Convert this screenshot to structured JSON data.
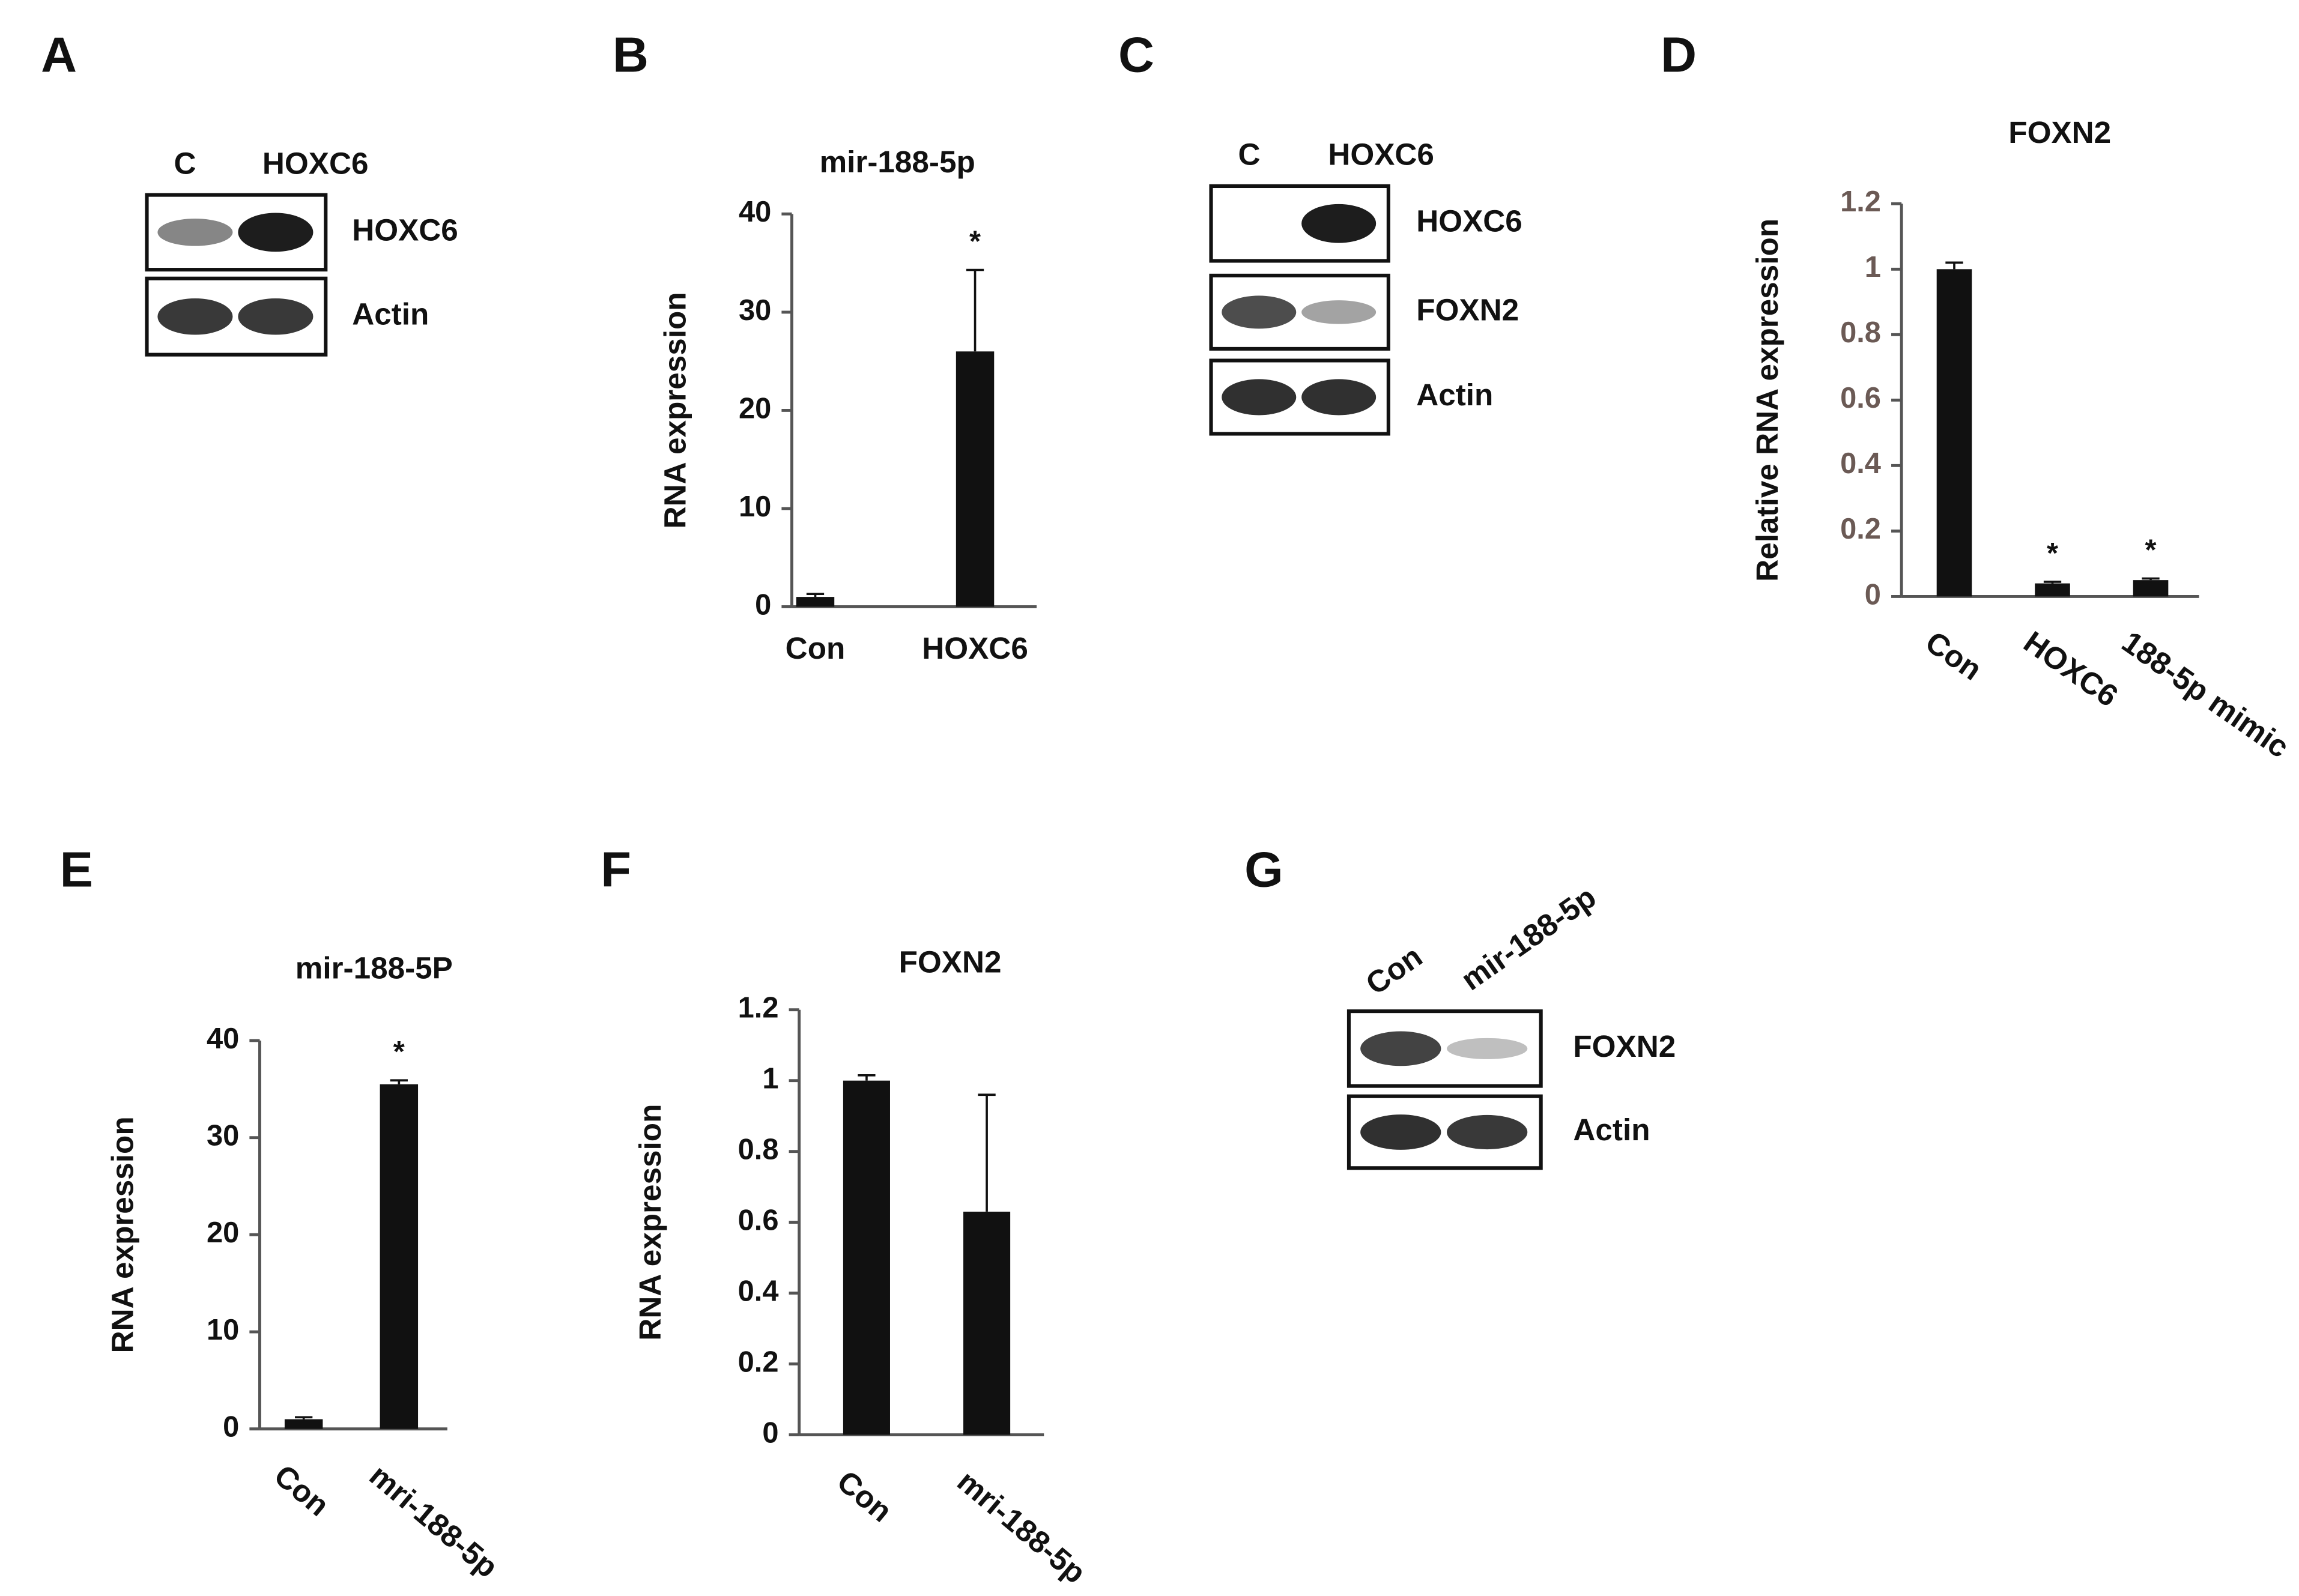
{
  "blots": [
    {
      "letter": "A",
      "lanes": [
        "C",
        "HOXC6"
      ],
      "rows": [
        "HOXC6",
        "Actin"
      ]
    },
    {
      "letter": "C",
      "lanes": [
        "C",
        "HOXC6"
      ],
      "rows": [
        "HOXC6",
        "FOXN2",
        "Actin"
      ]
    },
    {
      "letter": "G",
      "lanes": [
        "Con",
        "mir-188-5p"
      ],
      "rows": [
        "FOXN2",
        "Actin"
      ]
    }
  ],
  "chart_data": [
    {
      "type": "bar",
      "letter": "B",
      "title": "mir-188-5p",
      "y_label": "RNA expression",
      "categories": [
        "Con",
        "HOXC6"
      ],
      "values": [
        1,
        26
      ],
      "errors": [
        0.3,
        8.3
      ],
      "significance": [
        null,
        "*"
      ],
      "color": "#111111",
      "ylim": [
        0,
        40
      ],
      "yticks": [
        0,
        10,
        20,
        30,
        40
      ]
    },
    {
      "type": "bar",
      "letter": "D",
      "title": "FOXN2",
      "y_label": "Relative RNA expression",
      "categories": [
        "Con",
        "HOXC6",
        "188-5p mimic"
      ],
      "values": [
        1,
        0.04,
        0.05
      ],
      "errors": [
        0.02,
        0.005,
        0.005
      ],
      "significance": [
        null,
        "*",
        "*"
      ],
      "color": "#111111",
      "ylim": [
        0,
        1.2
      ],
      "yticks": [
        0,
        0.2,
        0.4,
        0.6,
        0.8,
        1,
        1.2
      ]
    },
    {
      "type": "bar",
      "letter": "E",
      "title": "mir-188-5P",
      "y_label": "RNA expression",
      "categories": [
        "Con",
        "mri-188-5p"
      ],
      "values": [
        1,
        35.5
      ],
      "errors": [
        0.2,
        0.4
      ],
      "significance": [
        null,
        "*"
      ],
      "color": "#111111",
      "ylim": [
        0,
        40
      ],
      "yticks": [
        0,
        10,
        20,
        30,
        40
      ]
    },
    {
      "type": "bar",
      "letter": "F",
      "title": "FOXN2",
      "y_label": "RNA expression",
      "categories": [
        "Con",
        "mri-188-5p"
      ],
      "values": [
        1,
        0.63
      ],
      "errors": [
        0.015,
        0.33
      ],
      "significance": [
        null,
        null
      ],
      "color": "#111111",
      "ylim": [
        0,
        1.2
      ],
      "yticks": [
        0,
        0.2,
        0.4,
        0.6,
        0.8,
        1,
        1.2
      ]
    }
  ]
}
